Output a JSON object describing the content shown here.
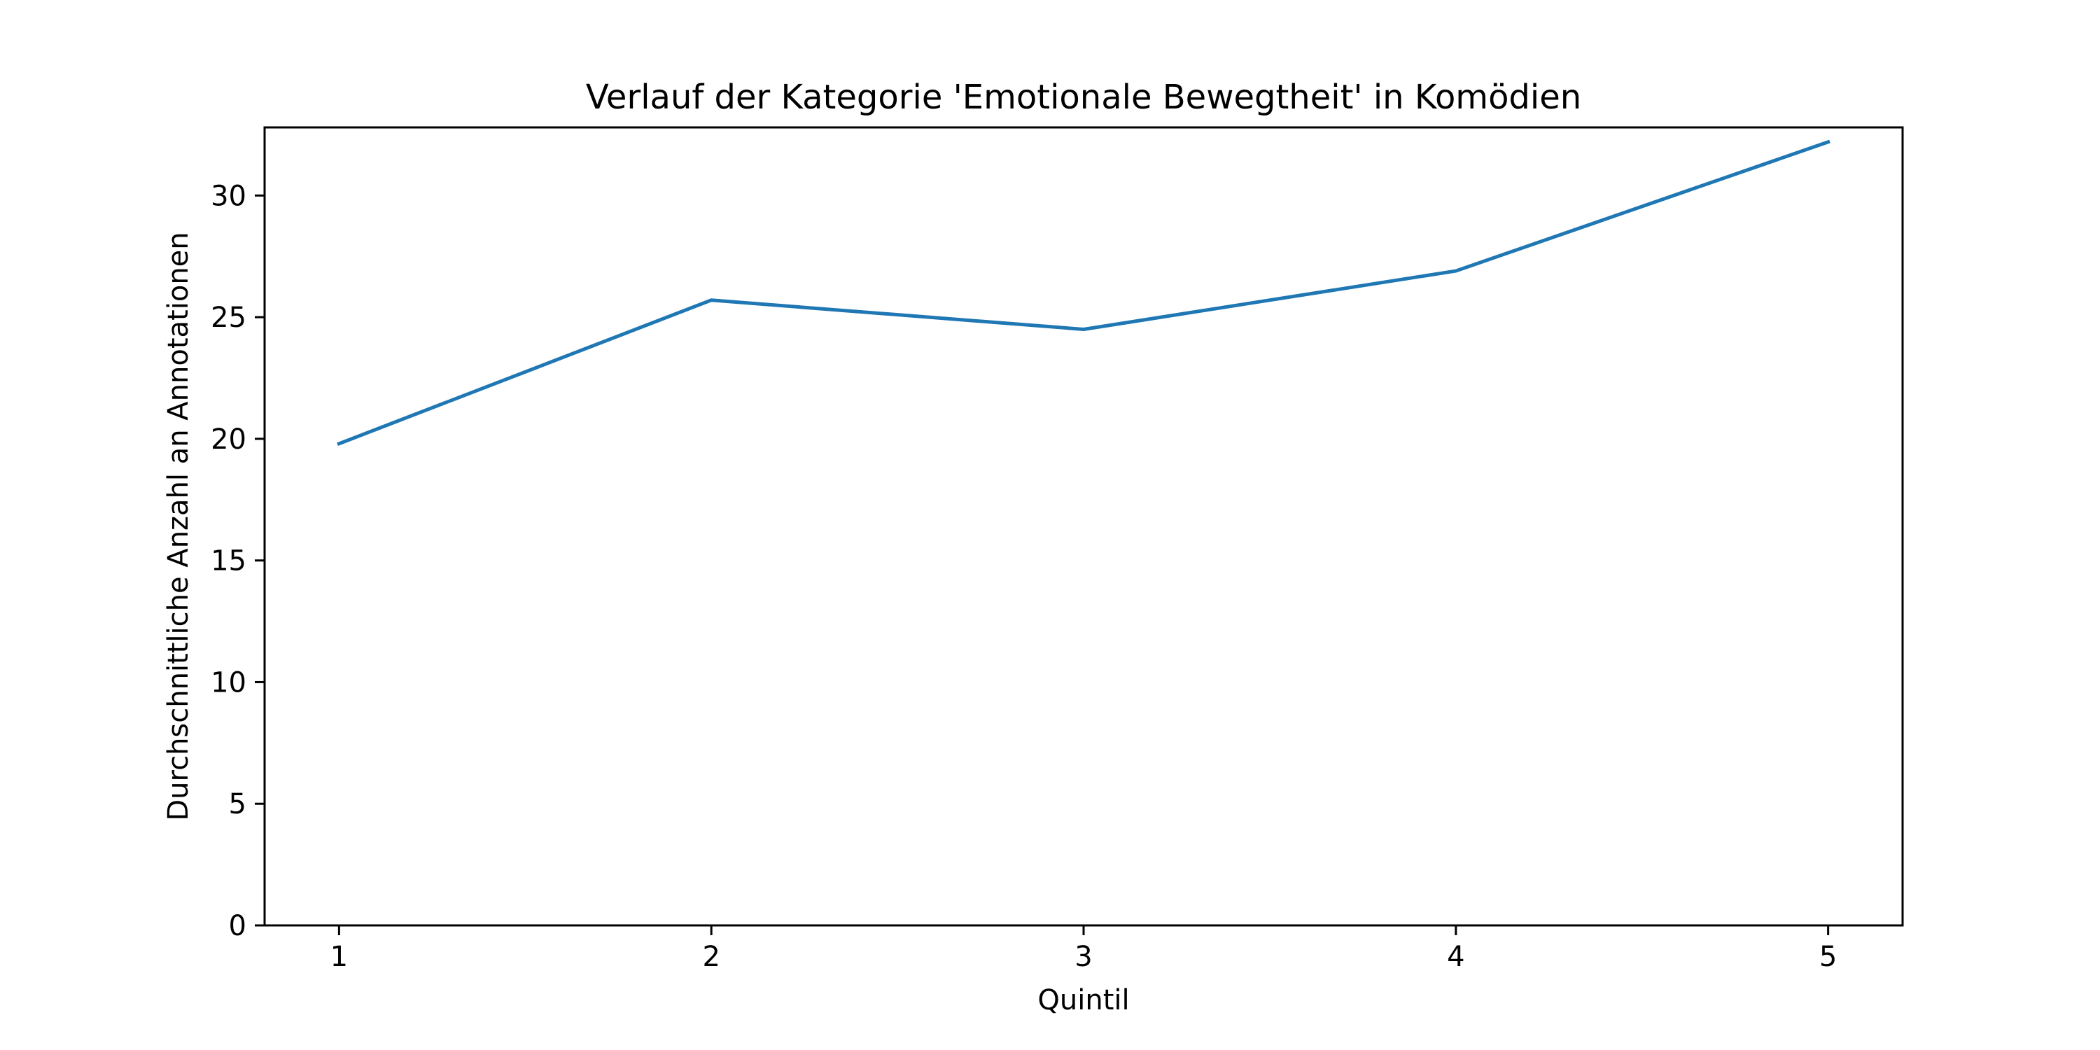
{
  "chart_data": {
    "type": "line",
    "title": "Verlauf der Kategorie 'Emotionale Bewegtheit' in Komödien",
    "xlabel": "Quintil",
    "ylabel": "Durchschnittliche Anzahl an Annotationen",
    "x": [
      1,
      2,
      3,
      4,
      5
    ],
    "x_tick_labels": [
      "1",
      "2",
      "3",
      "4",
      "5"
    ],
    "xlim": [
      0.8,
      5.2
    ],
    "ylim": [
      0,
      32.8
    ],
    "y_ticks": [
      0,
      5,
      10,
      15,
      20,
      25,
      30
    ],
    "y_tick_labels": [
      "0",
      "5",
      "10",
      "15",
      "20",
      "25",
      "30"
    ],
    "grid": false,
    "series": [
      {
        "values": [
          19.8,
          25.7,
          24.5,
          26.9,
          32.2
        ],
        "color": "#1f77b4"
      }
    ]
  }
}
